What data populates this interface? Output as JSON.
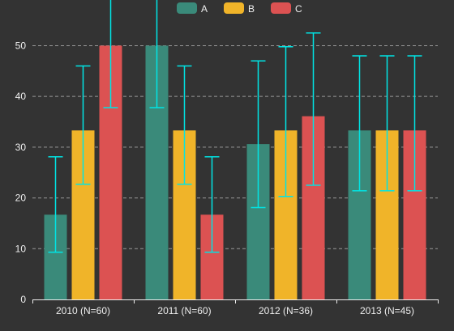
{
  "chart_data": {
    "type": "bar",
    "categories": [
      "2010 (N=60)",
      "2011 (N=60)",
      "2012 (N=36)",
      "2013 (N=45)"
    ],
    "series": [
      {
        "name": "A",
        "color": "#3a8a7a",
        "values": [
          16.7,
          50,
          30.6,
          33.3
        ],
        "error_low": [
          9.3,
          37.8,
          18.1,
          21.4
        ],
        "error_high": [
          28.1,
          63.1,
          47.0,
          48.0
        ]
      },
      {
        "name": "B",
        "color": "#f0b429",
        "values": [
          33.3,
          33.3,
          33.3,
          33.3
        ],
        "error_low": [
          22.7,
          22.7,
          20.3,
          21.4
        ],
        "error_high": [
          46.0,
          46.0,
          49.8,
          48.0
        ]
      },
      {
        "name": "C",
        "color": "#dc5252",
        "values": [
          50,
          16.7,
          36.1,
          33.3
        ],
        "error_low": [
          37.8,
          9.3,
          22.5,
          21.4
        ],
        "error_high": [
          63.1,
          28.1,
          52.5,
          48.0
        ]
      }
    ],
    "ylim": [
      0,
      59
    ],
    "yticks": [
      0,
      10,
      20,
      30,
      40,
      50
    ],
    "grid": true,
    "legend": "top-center",
    "error_bar_color": "#00e5e5"
  }
}
